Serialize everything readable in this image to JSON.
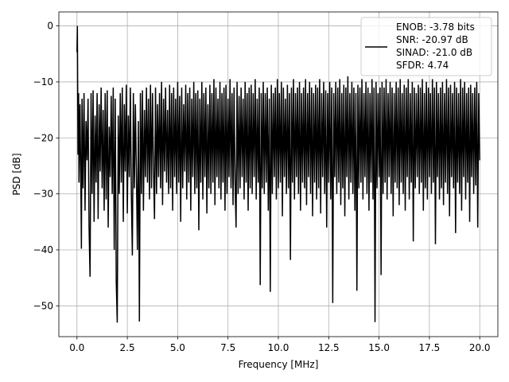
{
  "chart_data": {
    "type": "line",
    "xlabel": "Frequency [MHz]",
    "ylabel": "PSD [dB]",
    "xlim": [
      -0.9,
      20.9
    ],
    "ylim": [
      -55.5,
      2.5
    ],
    "xticks": [
      0.0,
      2.5,
      5.0,
      7.5,
      10.0,
      12.5,
      15.0,
      17.5,
      20.0
    ],
    "xtick_labels": [
      "0.0",
      "2.5",
      "5.0",
      "7.5",
      "10.0",
      "12.5",
      "15.0",
      "17.5",
      "20.0"
    ],
    "yticks": [
      0,
      -10,
      -20,
      -30,
      -40,
      -50
    ],
    "ytick_labels": [
      "0",
      "−10",
      "−20",
      "−30",
      "−40",
      "−50"
    ],
    "grid": true,
    "legend_position": "top-right",
    "legend": {
      "lines": [
        "ENOB: -3.78 bits",
        "SNR: -20.97 dB",
        "SINAD: -21.0 dB",
        "SFDR: 4.74"
      ]
    },
    "series": [
      {
        "color": "#000000",
        "x": [
          0.0,
          0.02,
          0.05,
          0.08,
          0.1,
          0.15,
          0.2,
          0.22,
          0.25,
          0.3,
          0.35,
          0.4,
          0.45,
          0.5,
          0.55,
          0.6,
          0.65,
          0.7,
          0.75,
          0.8,
          0.85,
          0.9,
          0.95,
          1.0,
          1.05,
          1.1,
          1.15,
          1.2,
          1.25,
          1.3,
          1.35,
          1.4,
          1.45,
          1.5,
          1.55,
          1.6,
          1.65,
          1.7,
          1.75,
          1.8,
          1.85,
          1.9,
          1.95,
          2.0,
          2.05,
          2.1,
          2.15,
          2.2,
          2.25,
          2.3,
          2.35,
          2.4,
          2.45,
          2.5,
          2.55,
          2.6,
          2.65,
          2.7,
          2.75,
          2.8,
          2.85,
          2.9,
          2.95,
          3.0,
          3.05,
          3.1,
          3.15,
          3.2,
          3.25,
          3.3,
          3.35,
          3.4,
          3.45,
          3.5,
          3.55,
          3.6,
          3.65,
          3.7,
          3.75,
          3.8,
          3.85,
          3.9,
          3.95,
          4.0,
          4.05,
          4.1,
          4.15,
          4.2,
          4.25,
          4.3,
          4.35,
          4.4,
          4.45,
          4.5,
          4.55,
          4.6,
          4.65,
          4.7,
          4.75,
          4.8,
          4.85,
          4.9,
          4.95,
          5.0,
          5.05,
          5.1,
          5.15,
          5.2,
          5.25,
          5.3,
          5.35,
          5.4,
          5.45,
          5.5,
          5.55,
          5.6,
          5.65,
          5.7,
          5.75,
          5.8,
          5.85,
          5.9,
          5.95,
          6.0,
          6.05,
          6.1,
          6.15,
          6.2,
          6.25,
          6.3,
          6.35,
          6.4,
          6.45,
          6.5,
          6.55,
          6.6,
          6.65,
          6.7,
          6.75,
          6.8,
          6.85,
          6.9,
          6.95,
          7.0,
          7.05,
          7.1,
          7.15,
          7.2,
          7.25,
          7.3,
          7.35,
          7.4,
          7.45,
          7.5,
          7.55,
          7.6,
          7.65,
          7.7,
          7.75,
          7.8,
          7.85,
          7.9,
          7.95,
          8.0,
          8.05,
          8.1,
          8.15,
          8.2,
          8.25,
          8.3,
          8.35,
          8.4,
          8.45,
          8.5,
          8.55,
          8.6,
          8.65,
          8.7,
          8.75,
          8.8,
          8.85,
          8.9,
          8.95,
          9.0,
          9.05,
          9.1,
          9.15,
          9.2,
          9.25,
          9.3,
          9.35,
          9.4,
          9.45,
          9.5,
          9.55,
          9.6,
          9.65,
          9.7,
          9.75,
          9.8,
          9.85,
          9.9,
          9.95,
          10.0,
          10.05,
          10.1,
          10.15,
          10.2,
          10.25,
          10.3,
          10.35,
          10.4,
          10.45,
          10.5,
          10.55,
          10.6,
          10.65,
          10.7,
          10.75,
          10.8,
          10.85,
          10.9,
          10.95,
          11.0,
          11.05,
          11.1,
          11.15,
          11.2,
          11.25,
          11.3,
          11.35,
          11.4,
          11.45,
          11.5,
          11.55,
          11.6,
          11.65,
          11.7,
          11.75,
          11.8,
          11.85,
          11.9,
          11.95,
          12.0,
          12.05,
          12.1,
          12.15,
          12.2,
          12.25,
          12.3,
          12.35,
          12.4,
          12.45,
          12.5,
          12.55,
          12.6,
          12.65,
          12.7,
          12.75,
          12.8,
          12.85,
          12.9,
          12.95,
          13.0,
          13.05,
          13.1,
          13.15,
          13.2,
          13.25,
          13.3,
          13.35,
          13.4,
          13.45,
          13.5,
          13.55,
          13.6,
          13.65,
          13.7,
          13.75,
          13.8,
          13.85,
          13.9,
          13.95,
          14.0,
          14.05,
          14.1,
          14.15,
          14.2,
          14.25,
          14.3,
          14.35,
          14.4,
          14.45,
          14.5,
          14.55,
          14.6,
          14.65,
          14.7,
          14.75,
          14.8,
          14.85,
          14.9,
          14.95,
          15.0,
          15.05,
          15.1,
          15.15,
          15.2,
          15.25,
          15.3,
          15.35,
          15.4,
          15.45,
          15.5,
          15.55,
          15.6,
          15.65,
          15.7,
          15.75,
          15.8,
          15.85,
          15.9,
          15.95,
          16.0,
          16.05,
          16.1,
          16.15,
          16.2,
          16.25,
          16.3,
          16.35,
          16.4,
          16.45,
          16.5,
          16.55,
          16.6,
          16.65,
          16.7,
          16.75,
          16.8,
          16.85,
          16.9,
          16.95,
          17.0,
          17.05,
          17.1,
          17.15,
          17.2,
          17.25,
          17.3,
          17.35,
          17.4,
          17.45,
          17.5,
          17.55,
          17.6,
          17.65,
          17.7,
          17.75,
          17.8,
          17.85,
          17.9,
          17.95,
          18.0,
          18.05,
          18.1,
          18.15,
          18.2,
          18.25,
          18.3,
          18.35,
          18.4,
          18.45,
          18.5,
          18.55,
          18.6,
          18.65,
          18.7,
          18.75,
          18.8,
          18.85,
          18.9,
          18.95,
          19.0,
          19.05,
          19.1,
          19.15,
          19.2,
          19.25,
          19.3,
          19.35,
          19.4,
          19.45,
          19.5,
          19.55,
          19.6,
          19.65,
          19.7,
          19.75,
          19.8,
          19.85,
          19.9,
          19.95,
          20.0
        ],
        "y": [
          -4.7,
          0.0,
          -23.0,
          -12.0,
          -28.0,
          -14.0,
          -31.0,
          -39.8,
          -13.0,
          -29.0,
          -12.0,
          -33.0,
          -17.0,
          -24.0,
          -13.0,
          -36.0,
          -44.8,
          -12.0,
          -30.0,
          -11.5,
          -35.0,
          -16.0,
          -28.0,
          -12.0,
          -34.5,
          -14.0,
          -26.0,
          -11.0,
          -29.0,
          -15.0,
          -33.0,
          -12.0,
          -31.0,
          -11.5,
          -36.0,
          -18.0,
          -27.0,
          -12.5,
          -30.0,
          -11.0,
          -40.0,
          -13.0,
          -45.7,
          -53.0,
          -16.0,
          -30.0,
          -12.0,
          -28.0,
          -11.0,
          -35.0,
          -14.0,
          -26.0,
          -10.5,
          -33.5,
          -16.0,
          -27.0,
          -11.0,
          -30.0,
          -41.0,
          -12.0,
          -29.0,
          -14.0,
          -26.0,
          -40.0,
          -17.0,
          -52.8,
          -12.0,
          -30.0,
          -11.5,
          -33.0,
          -15.0,
          -27.0,
          -11.0,
          -28.0,
          -13.0,
          -31.0,
          -10.5,
          -29.0,
          -12.0,
          -26.0,
          -34.5,
          -11.0,
          -30.0,
          -14.0,
          -27.0,
          -12.0,
          -29.0,
          -10.0,
          -32.0,
          -13.0,
          -26.0,
          -11.0,
          -28.0,
          -15.0,
          -30.0,
          -10.5,
          -29.0,
          -12.0,
          -33.0,
          -11.0,
          -27.0,
          -13.0,
          -30.0,
          -10.0,
          -28.0,
          -12.5,
          -35.0,
          -11.0,
          -29.0,
          -14.0,
          -26.0,
          -10.5,
          -31.0,
          -12.0,
          -28.0,
          -11.0,
          -33.0,
          -13.0,
          -27.0,
          -10.0,
          -30.0,
          -12.0,
          -29.0,
          -11.5,
          -36.5,
          -13.0,
          -28.0,
          -10.0,
          -31.0,
          -12.0,
          -27.0,
          -11.0,
          -33.5,
          -14.0,
          -29.0,
          -10.5,
          -30.0,
          -12.0,
          -28.0,
          -9.5,
          -32.0,
          -11.0,
          -27.0,
          -13.0,
          -29.0,
          -10.0,
          -31.0,
          -12.0,
          -28.0,
          -11.0,
          -33.0,
          -10.5,
          -30.0,
          -13.0,
          -27.0,
          -9.5,
          -29.0,
          -12.0,
          -32.0,
          -11.0,
          -28.0,
          -36.0,
          -10.0,
          -30.0,
          -12.5,
          -29.0,
          -11.0,
          -27.0,
          -13.0,
          -31.0,
          -10.0,
          -28.0,
          -12.0,
          -33.0,
          -11.0,
          -29.0,
          -10.5,
          -30.0,
          -12.0,
          -27.0,
          -9.5,
          -31.0,
          -13.0,
          -28.0,
          -11.0,
          -46.3,
          -12.0,
          -29.0,
          -10.0,
          -30.0,
          -12.0,
          -28.0,
          -11.0,
          -33.0,
          -13.0,
          -47.5,
          -10.5,
          -30.0,
          -12.0,
          -27.0,
          -11.0,
          -31.0,
          -9.5,
          -29.0,
          -12.0,
          -28.0,
          -10.0,
          -34.0,
          -11.0,
          -27.0,
          -13.0,
          -30.0,
          -10.5,
          -29.0,
          -12.0,
          -41.8,
          -11.0,
          -28.0,
          -9.5,
          -31.0,
          -12.0,
          -27.0,
          -11.0,
          -30.0,
          -10.0,
          -33.0,
          -12.0,
          -28.0,
          -11.0,
          -29.0,
          -9.5,
          -32.0,
          -12.0,
          -27.0,
          -10.0,
          -30.0,
          -11.0,
          -34.0,
          -12.0,
          -28.0,
          -10.5,
          -31.0,
          -11.0,
          -29.0,
          -9.5,
          -33.5,
          -12.0,
          -27.0,
          -10.0,
          -30.0,
          -11.5,
          -36.0,
          -12.0,
          -28.0,
          -10.0,
          -31.0,
          -11.0,
          -49.5,
          -12.0,
          -27.0,
          -10.0,
          -30.0,
          -11.0,
          -28.0,
          -9.5,
          -32.0,
          -12.0,
          -29.0,
          -10.5,
          -34.0,
          -11.0,
          -27.0,
          -9.0,
          -31.0,
          -12.0,
          -28.0,
          -10.0,
          -30.0,
          -11.0,
          -33.0,
          -12.0,
          -47.3,
          -10.5,
          -29.0,
          -11.0,
          -28.0,
          -9.5,
          -31.0,
          -12.0,
          -27.0,
          -10.0,
          -30.0,
          -11.0,
          -33.0,
          -12.0,
          -28.0,
          -9.5,
          -31.0,
          -11.0,
          -52.9,
          -10.0,
          -29.0,
          -12.0,
          -27.0,
          -11.0,
          -44.5,
          -10.0,
          -30.0,
          -11.0,
          -28.0,
          -9.5,
          -31.0,
          -12.0,
          -27.0,
          -10.0,
          -30.0,
          -11.0,
          -34.0,
          -12.0,
          -28.0,
          -10.0,
          -29.0,
          -11.0,
          -32.0,
          -9.5,
          -28.0,
          -12.0,
          -30.0,
          -10.5,
          -33.0,
          -11.0,
          -27.0,
          -9.5,
          -31.0,
          -12.0,
          -28.0,
          -10.0,
          -38.5,
          -11.0,
          -29.0,
          -12.0,
          -27.0,
          -10.5,
          -30.0,
          -11.0,
          -28.0,
          -9.5,
          -33.0,
          -12.0,
          -29.0,
          -10.0,
          -31.0,
          -11.0,
          -27.0,
          -12.0,
          -30.0,
          -9.5,
          -28.0,
          -11.0,
          -39.0,
          -10.0,
          -27.0,
          -12.0,
          -31.0,
          -11.0,
          -29.0,
          -10.0,
          -32.0,
          -12.0,
          -28.0,
          -9.5,
          -30.0,
          -11.0,
          -34.0,
          -10.5,
          -27.0,
          -12.0,
          -29.0,
          -10.0,
          -37.0,
          -11.0,
          -28.0,
          -12.0,
          -30.0,
          -9.5,
          -33.0,
          -11.0,
          -27.0,
          -10.0,
          -31.0,
          -12.0,
          -28.0,
          -11.0,
          -35.0,
          -10.5,
          -27.0,
          -12.0,
          -30.0,
          -11.0,
          -28.5,
          -10.0,
          -36.0,
          -12.0,
          -24.0
        ]
      }
    ]
  }
}
